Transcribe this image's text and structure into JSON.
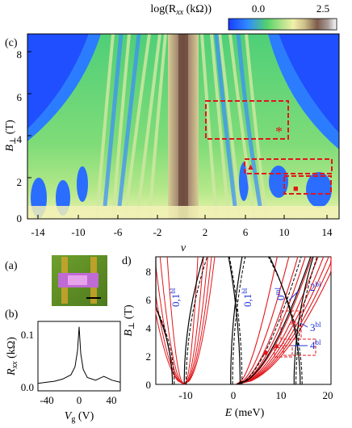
{
  "figure": {
    "colorbar": {
      "label": "log(R",
      "label_sub": "xx",
      "label_tail": " (kΩ))",
      "tick_min": "0.0",
      "tick_max": "2.5",
      "colors": [
        "#1a3cff",
        "#2f8cff",
        "#56d36a",
        "#b7e38d",
        "#f1f0a8",
        "#cfc08a",
        "#7d5c4b",
        "#a89d9a",
        "#ffffff"
      ]
    },
    "panel_c": {
      "label": "(c)",
      "ylabel": "B",
      "ylabel_sub": "⊥",
      "ylabel_unit": " (T)",
      "xlabel": "ν",
      "x_ticks": [
        "-14",
        "-10",
        "-6",
        "-2",
        "2",
        "6",
        "10",
        "14"
      ],
      "y_ticks": [
        "0",
        "2",
        "4",
        "6",
        "8"
      ],
      "markers": {
        "star": "*",
        "triangle": "▲",
        "square": "■"
      }
    },
    "panel_a": {
      "label": "(a)"
    },
    "panel_b": {
      "label": "(b)",
      "ylabel": "R",
      "ylabel_sub": "xx",
      "ylabel_unit": " (kΩ)",
      "xlabel": "V",
      "xlabel_sub": "g",
      "xlabel_unit": " (V)",
      "x_ticks": [
        "-40",
        "0",
        "40"
      ],
      "y_ticks": [
        "0.0",
        "0.1"
      ]
    },
    "panel_d": {
      "label": "d)",
      "ylabel": "B",
      "ylabel_sub": "⊥",
      "ylabel_unit": " (T)",
      "xlabel": "E",
      "xlabel_unit": " (meV)",
      "x_ticks": [
        "-10",
        "0",
        "10",
        "20"
      ],
      "y_ticks": [
        "0",
        "2",
        "4",
        "6",
        "8"
      ],
      "annotations": [
        {
          "text": "0,1",
          "sup": "bl"
        },
        {
          "text": "0,1",
          "sup": "bl"
        },
        {
          "text": "0",
          "sup": "ml"
        },
        {
          "text": "2",
          "sup": "bl"
        },
        {
          "text": "3",
          "sup": "bl"
        },
        {
          "text": "4",
          "sup": "bl"
        }
      ],
      "annotation_color": "#1a2fd6"
    }
  },
  "chart_data": [
    {
      "type": "heatmap",
      "panel": "c",
      "xlabel": "ν",
      "ylabel": "B⊥ (T)",
      "xlim": [
        -16,
        16
      ],
      "ylim": [
        0,
        9
      ],
      "x_ticks": [
        -14,
        -10,
        -6,
        -2,
        2,
        6,
        10,
        14
      ],
      "y_ticks": [
        0,
        2,
        4,
        6,
        8
      ],
      "colorbar_label": "log(Rxx (kΩ))",
      "colorbar_range": [
        0.0,
        2.5
      ],
      "boxes_data_units": [
        {
          "x": [
            2.3,
            10.4
          ],
          "y": [
            3.9,
            5.8
          ],
          "marker": "*"
        },
        {
          "x": [
            6.0,
            14.6
          ],
          "y": [
            2.35,
            3.0
          ],
          "marker": "triangle"
        },
        {
          "x": [
            9.6,
            14.6
          ],
          "y": [
            1.35,
            2.35
          ],
          "marker": "square"
        }
      ]
    },
    {
      "type": "line",
      "panel": "b",
      "xlabel": "Vg (V)",
      "ylabel": "Rxx (kΩ)",
      "xlim": [
        -50,
        50
      ],
      "ylim": [
        0,
        0.13
      ],
      "x": [
        -50,
        -40,
        -30,
        -20,
        -10,
        -5,
        -2,
        0,
        2,
        5,
        10,
        20,
        30,
        40,
        50
      ],
      "y": [
        0.014,
        0.016,
        0.018,
        0.022,
        0.03,
        0.045,
        0.075,
        0.12,
        0.07,
        0.04,
        0.025,
        0.02,
        0.027,
        0.02,
        0.016
      ]
    },
    {
      "type": "line",
      "panel": "d",
      "xlabel": "E (meV)",
      "ylabel": "B⊥ (T)",
      "xlim": [
        -17,
        20
      ],
      "ylim": [
        0,
        9
      ],
      "x_ticks": [
        -10,
        0,
        10,
        20
      ],
      "y_ticks": [
        0,
        2,
        4,
        6,
        8
      ]
    }
  ]
}
